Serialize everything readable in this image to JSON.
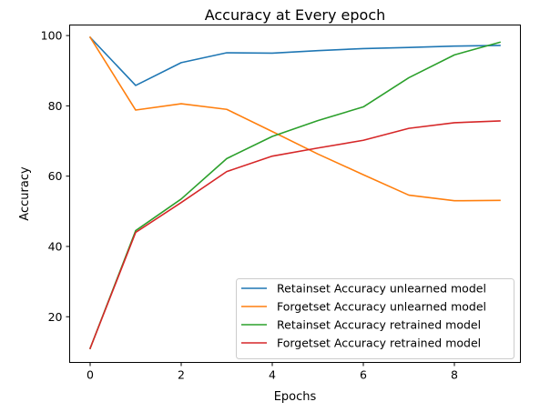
{
  "chart_data": {
    "type": "line",
    "title": "Accuracy at Every epoch",
    "xlabel": "Epochs",
    "ylabel": "Accuracy",
    "x": [
      0,
      1,
      2,
      3,
      4,
      5,
      6,
      7,
      8,
      9
    ],
    "xlim": [
      -0.45,
      9.45
    ],
    "ylim": [
      7,
      103
    ],
    "xticks": [
      0,
      2,
      4,
      6,
      8
    ],
    "yticks": [
      20,
      40,
      60,
      80,
      100
    ],
    "grid": false,
    "legend_position": "lower-right",
    "series": [
      {
        "name": "Retainset Accuracy unlearned model",
        "color": "#1f77b4",
        "values": [
          99.5,
          85.8,
          92.3,
          95.1,
          95.0,
          95.7,
          96.3,
          96.6,
          97.0,
          97.2
        ]
      },
      {
        "name": "Forgetset Accuracy unlearned model",
        "color": "#ff7f0e",
        "values": [
          99.5,
          78.8,
          80.6,
          79.0,
          72.7,
          66.3,
          60.4,
          54.6,
          53.0,
          53.1
        ]
      },
      {
        "name": "Retainset Accuracy retrained model",
        "color": "#2ca02c",
        "values": [
          11.0,
          44.5,
          53.5,
          65.0,
          71.3,
          75.8,
          79.7,
          88.0,
          94.5,
          98.1
        ]
      },
      {
        "name": "Forgetset Accuracy retrained model",
        "color": "#d62728",
        "values": [
          11.0,
          44.0,
          52.5,
          61.3,
          65.7,
          68.0,
          70.2,
          73.6,
          75.2,
          75.7
        ]
      }
    ]
  }
}
